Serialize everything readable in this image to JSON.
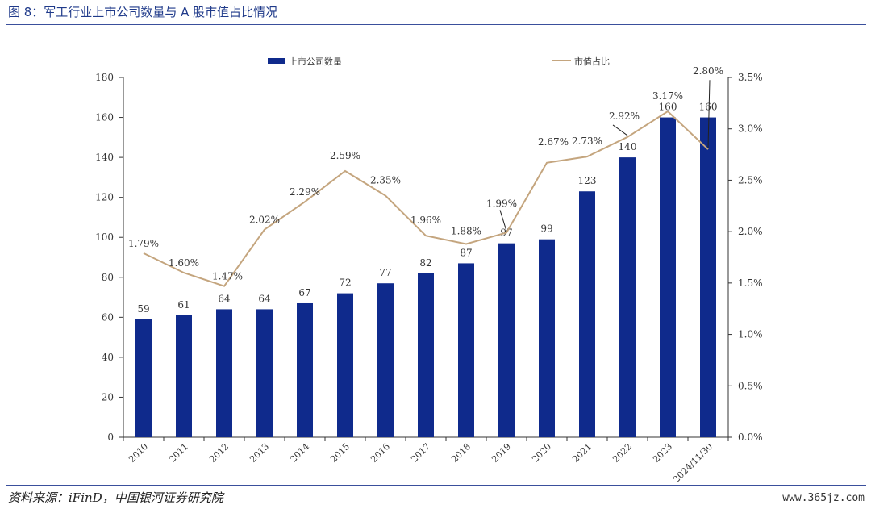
{
  "figure": {
    "title": "图 8：军工行业上市公司数量与 A 股市值占比情况",
    "source": "资料来源：iFinD，中国银河证券研究院",
    "watermark": "www.365jz.com"
  },
  "colors": {
    "bar": "#0f2a8c",
    "line": "#c4a57e",
    "rule": "#3a4f9c",
    "title": "#1f3a8a"
  },
  "chart_data": {
    "type": "bar",
    "title": "",
    "xlabel": "",
    "ylabel": "",
    "categories": [
      "2010",
      "2011",
      "2012",
      "2013",
      "2014",
      "2015",
      "2016",
      "2017",
      "2018",
      "2019",
      "2020",
      "2021",
      "2022",
      "2023",
      "2024/11/30"
    ],
    "series": [
      {
        "name": "上市公司数量",
        "type": "bar",
        "axis": "left",
        "values": [
          59,
          61,
          64,
          64,
          67,
          72,
          77,
          82,
          87,
          97,
          99,
          123,
          140,
          160,
          160
        ],
        "labels": [
          "59",
          "61",
          "64",
          "64",
          "67",
          "72",
          "77",
          "82",
          "87",
          "97",
          "99",
          "123",
          "140",
          "160",
          "160"
        ]
      },
      {
        "name": "市值占比",
        "type": "line",
        "axis": "right",
        "values": [
          1.79,
          1.6,
          1.47,
          2.02,
          2.29,
          2.59,
          2.35,
          1.96,
          1.88,
          1.99,
          2.67,
          2.73,
          2.92,
          3.17,
          2.8
        ],
        "labels": [
          "1.79%",
          "1.60%",
          "1.47%",
          "2.02%",
          "2.29%",
          "2.59%",
          "2.35%",
          "1.96%",
          "1.88%",
          "1.99%",
          "2.67%",
          "2.73%",
          "2.92%",
          "3.17%",
          "2.80%"
        ]
      }
    ],
    "y_left": {
      "ylim": [
        0,
        180
      ],
      "ticks": [
        "0",
        "20",
        "40",
        "60",
        "80",
        "100",
        "120",
        "140",
        "160",
        "180"
      ]
    },
    "y_right": {
      "ylim": [
        0,
        3.5
      ],
      "ticks": [
        "0.0%",
        "0.5%",
        "1.0%",
        "1.5%",
        "2.0%",
        "2.5%",
        "3.0%",
        "3.5%"
      ]
    },
    "legend": {
      "position": "top-center",
      "items": [
        "上市公司数量",
        "市值占比"
      ]
    },
    "grid": false
  }
}
